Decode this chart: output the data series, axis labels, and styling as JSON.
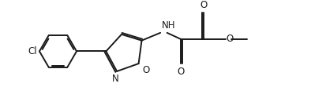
{
  "bg_color": "#ffffff",
  "line_color": "#1a1a1a",
  "line_width": 1.4,
  "font_size": 8.5,
  "fig_width": 4.14,
  "fig_height": 1.25,
  "dpi": 100,
  "xlim": [
    0,
    10.5
  ],
  "ylim": [
    0,
    3.0
  ]
}
